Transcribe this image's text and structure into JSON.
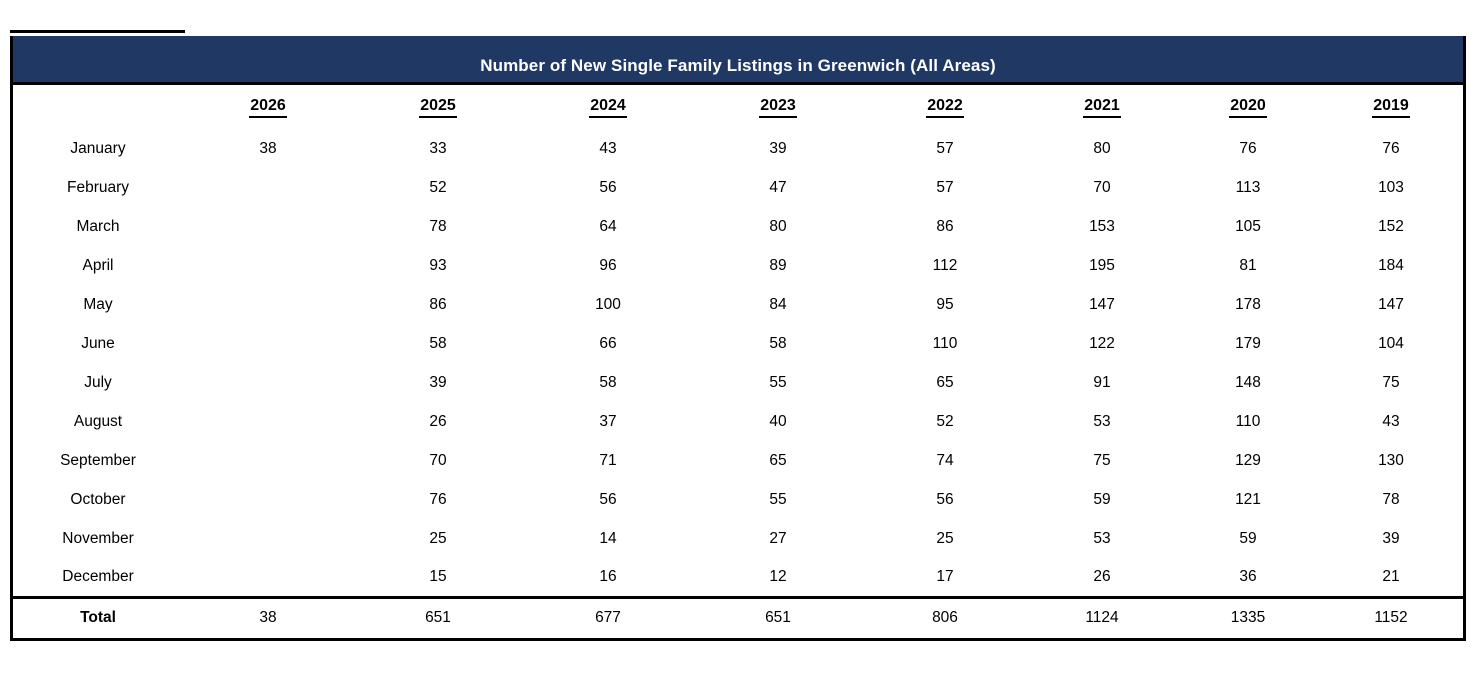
{
  "colors": {
    "title_bg": "#1F3864",
    "title_text": "#FFFFFF",
    "border": "#000000",
    "body_text": "#000000"
  },
  "chart_data": {
    "type": "table",
    "title": "Number of New Single Family Listings in Greenwich (All Areas)",
    "columns": [
      "2026",
      "2025",
      "2024",
      "2023",
      "2022",
      "2021",
      "2020",
      "2019"
    ],
    "rows": [
      {
        "label": "January",
        "values": [
          "38",
          "33",
          "43",
          "39",
          "57",
          "80",
          "76",
          "76"
        ]
      },
      {
        "label": "February",
        "values": [
          "",
          "52",
          "56",
          "47",
          "57",
          "70",
          "113",
          "103"
        ]
      },
      {
        "label": "March",
        "values": [
          "",
          "78",
          "64",
          "80",
          "86",
          "153",
          "105",
          "152"
        ]
      },
      {
        "label": "April",
        "values": [
          "",
          "93",
          "96",
          "89",
          "112",
          "195",
          "81",
          "184"
        ]
      },
      {
        "label": "May",
        "values": [
          "",
          "86",
          "100",
          "84",
          "95",
          "147",
          "178",
          "147"
        ]
      },
      {
        "label": "June",
        "values": [
          "",
          "58",
          "66",
          "58",
          "110",
          "122",
          "179",
          "104"
        ]
      },
      {
        "label": "July",
        "values": [
          "",
          "39",
          "58",
          "55",
          "65",
          "91",
          "148",
          "75"
        ]
      },
      {
        "label": "August",
        "values": [
          "",
          "26",
          "37",
          "40",
          "52",
          "53",
          "110",
          "43"
        ]
      },
      {
        "label": "September",
        "values": [
          "",
          "70",
          "71",
          "65",
          "74",
          "75",
          "129",
          "130"
        ]
      },
      {
        "label": "October",
        "values": [
          "",
          "76",
          "56",
          "55",
          "56",
          "59",
          "121",
          "78"
        ]
      },
      {
        "label": "November",
        "values": [
          "",
          "25",
          "14",
          "27",
          "25",
          "53",
          "59",
          "39"
        ]
      },
      {
        "label": "December",
        "values": [
          "",
          "15",
          "16",
          "12",
          "17",
          "26",
          "36",
          "21"
        ]
      }
    ],
    "total": {
      "label": "Total",
      "values": [
        "38",
        "651",
        "677",
        "651",
        "806",
        "1124",
        "1335",
        "1152"
      ]
    }
  }
}
